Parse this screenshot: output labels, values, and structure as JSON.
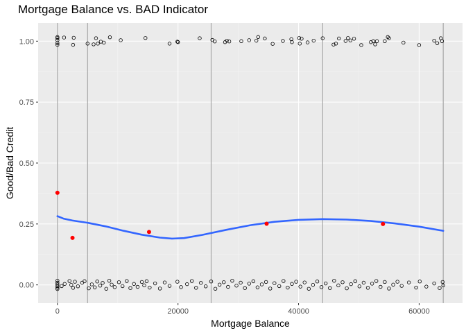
{
  "chart_data": {
    "type": "scatter",
    "title": "Mortgage Balance vs. BAD Indicator",
    "xlabel": "Mortgage Balance",
    "ylabel": "Good/Bad Credit",
    "xlim": [
      -3200,
      67200
    ],
    "ylim": [
      -0.075,
      1.075
    ],
    "x_ticks": [
      0,
      20000,
      40000,
      60000
    ],
    "x_tick_labels": [
      "0",
      "20000",
      "40000",
      "60000"
    ],
    "y_ticks": [
      0,
      0.25,
      0.5,
      0.75,
      1
    ],
    "y_tick_labels": [
      "0.00",
      "0.25",
      "0.50",
      "0.75",
      "1.00"
    ],
    "grid": true,
    "bin_breaks": [
      0,
      5000,
      25500,
      44000,
      64000
    ],
    "bin_means": [
      {
        "x": 0,
        "y": 0.378
      },
      {
        "x": 2500,
        "y": 0.193
      },
      {
        "x": 15200,
        "y": 0.217
      },
      {
        "x": 34700,
        "y": 0.251
      },
      {
        "x": 54000,
        "y": 0.25
      }
    ],
    "smooth_line": [
      {
        "x": 0,
        "y": 0.282
      },
      {
        "x": 1000,
        "y": 0.272
      },
      {
        "x": 2500,
        "y": 0.264
      },
      {
        "x": 5000,
        "y": 0.255
      },
      {
        "x": 8000,
        "y": 0.24
      },
      {
        "x": 11000,
        "y": 0.222
      },
      {
        "x": 14000,
        "y": 0.206
      },
      {
        "x": 17000,
        "y": 0.194
      },
      {
        "x": 19000,
        "y": 0.19
      },
      {
        "x": 21000,
        "y": 0.192
      },
      {
        "x": 24000,
        "y": 0.205
      },
      {
        "x": 28000,
        "y": 0.226
      },
      {
        "x": 32000,
        "y": 0.245
      },
      {
        "x": 36000,
        "y": 0.259
      },
      {
        "x": 40000,
        "y": 0.267
      },
      {
        "x": 44000,
        "y": 0.27
      },
      {
        "x": 48000,
        "y": 0.268
      },
      {
        "x": 52000,
        "y": 0.262
      },
      {
        "x": 56000,
        "y": 0.252
      },
      {
        "x": 60000,
        "y": 0.239
      },
      {
        "x": 64000,
        "y": 0.222
      }
    ],
    "points_bad": [
      {
        "x": 0,
        "y": 1.013
      },
      {
        "x": 0,
        "y": 0.992
      },
      {
        "x": 0,
        "y": 1.004
      },
      {
        "x": 0,
        "y": 1.017
      },
      {
        "x": 0,
        "y": 0.985
      },
      {
        "x": 1100,
        "y": 1.015
      },
      {
        "x": 2600,
        "y": 0.985
      },
      {
        "x": 2700,
        "y": 1.014
      },
      {
        "x": 5000,
        "y": 0.99
      },
      {
        "x": 6000,
        "y": 0.987
      },
      {
        "x": 6400,
        "y": 1.012
      },
      {
        "x": 6700,
        "y": 0.99
      },
      {
        "x": 7200,
        "y": 0.998
      },
      {
        "x": 7700,
        "y": 0.994
      },
      {
        "x": 8700,
        "y": 1.016
      },
      {
        "x": 10500,
        "y": 1.004
      },
      {
        "x": 14600,
        "y": 1.013
      },
      {
        "x": 18600,
        "y": 0.99
      },
      {
        "x": 19900,
        "y": 0.998
      },
      {
        "x": 20000,
        "y": 0.996
      },
      {
        "x": 23600,
        "y": 1.012
      },
      {
        "x": 25700,
        "y": 1.005
      },
      {
        "x": 26100,
        "y": 0.999
      },
      {
        "x": 27800,
        "y": 0.996
      },
      {
        "x": 28100,
        "y": 1.002
      },
      {
        "x": 28500,
        "y": 0.999
      },
      {
        "x": 30500,
        "y": 1.0
      },
      {
        "x": 31800,
        "y": 1.004
      },
      {
        "x": 33000,
        "y": 1.002
      },
      {
        "x": 33300,
        "y": 1.017
      },
      {
        "x": 34400,
        "y": 1.011
      },
      {
        "x": 35700,
        "y": 0.989
      },
      {
        "x": 37400,
        "y": 1.001
      },
      {
        "x": 38800,
        "y": 1.008
      },
      {
        "x": 38900,
        "y": 0.996
      },
      {
        "x": 40100,
        "y": 1.013
      },
      {
        "x": 40500,
        "y": 1.01
      },
      {
        "x": 40200,
        "y": 0.99
      },
      {
        "x": 41500,
        "y": 0.995
      },
      {
        "x": 42500,
        "y": 1.002
      },
      {
        "x": 44000,
        "y": 1.012
      },
      {
        "x": 45800,
        "y": 0.986
      },
      {
        "x": 46200,
        "y": 0.99
      },
      {
        "x": 46700,
        "y": 1.011
      },
      {
        "x": 47800,
        "y": 1.001
      },
      {
        "x": 48200,
        "y": 1.013
      },
      {
        "x": 48600,
        "y": 1.003
      },
      {
        "x": 49200,
        "y": 1.01
      },
      {
        "x": 50400,
        "y": 0.984
      },
      {
        "x": 52000,
        "y": 0.996
      },
      {
        "x": 52400,
        "y": 1.0
      },
      {
        "x": 52700,
        "y": 0.987
      },
      {
        "x": 53000,
        "y": 1.0
      },
      {
        "x": 54300,
        "y": 1.0
      },
      {
        "x": 54800,
        "y": 1.017
      },
      {
        "x": 55000,
        "y": 1.012
      },
      {
        "x": 57400,
        "y": 0.994
      },
      {
        "x": 60000,
        "y": 0.984
      },
      {
        "x": 62500,
        "y": 1.002
      },
      {
        "x": 63000,
        "y": 0.992
      },
      {
        "x": 63600,
        "y": 1.012
      },
      {
        "x": 63800,
        "y": 1.0
      }
    ],
    "points_good": [
      {
        "x": 0,
        "y": 0.017
      },
      {
        "x": 0,
        "y": 0.009
      },
      {
        "x": 0,
        "y": 0.002
      },
      {
        "x": 0,
        "y": -0.005
      },
      {
        "x": 0,
        "y": -0.012
      },
      {
        "x": 0,
        "y": -0.017
      },
      {
        "x": 700,
        "y": -0.005
      },
      {
        "x": 1200,
        "y": 0.004
      },
      {
        "x": 2000,
        "y": 0.016
      },
      {
        "x": 2300,
        "y": 0.0
      },
      {
        "x": 2600,
        "y": -0.012
      },
      {
        "x": 2900,
        "y": 0.013
      },
      {
        "x": 3400,
        "y": -0.006
      },
      {
        "x": 4100,
        "y": 0.009
      },
      {
        "x": 4500,
        "y": 0.015
      },
      {
        "x": 5200,
        "y": -0.014
      },
      {
        "x": 5700,
        "y": 0.002
      },
      {
        "x": 6200,
        "y": -0.01
      },
      {
        "x": 6600,
        "y": 0.014
      },
      {
        "x": 7100,
        "y": -0.003
      },
      {
        "x": 7500,
        "y": 0.008
      },
      {
        "x": 8100,
        "y": -0.016
      },
      {
        "x": 8600,
        "y": 0.017
      },
      {
        "x": 9000,
        "y": 0.001
      },
      {
        "x": 9500,
        "y": -0.009
      },
      {
        "x": 10200,
        "y": 0.011
      },
      {
        "x": 10800,
        "y": -0.005
      },
      {
        "x": 11500,
        "y": 0.016
      },
      {
        "x": 12100,
        "y": -0.013
      },
      {
        "x": 12700,
        "y": 0.004
      },
      {
        "x": 13300,
        "y": -0.008
      },
      {
        "x": 14000,
        "y": 0.012
      },
      {
        "x": 14400,
        "y": -0.002
      },
      {
        "x": 14800,
        "y": 0.015
      },
      {
        "x": 15300,
        "y": -0.011
      },
      {
        "x": 16200,
        "y": 0.006
      },
      {
        "x": 17000,
        "y": -0.015
      },
      {
        "x": 17800,
        "y": 0.01
      },
      {
        "x": 18600,
        "y": -0.004
      },
      {
        "x": 19900,
        "y": 0.013
      },
      {
        "x": 20500,
        "y": -0.009
      },
      {
        "x": 21500,
        "y": 0.003
      },
      {
        "x": 22300,
        "y": 0.016
      },
      {
        "x": 23000,
        "y": -0.012
      },
      {
        "x": 23800,
        "y": 0.008
      },
      {
        "x": 24600,
        "y": -0.006
      },
      {
        "x": 25500,
        "y": 0.014
      },
      {
        "x": 26200,
        "y": -0.016
      },
      {
        "x": 26900,
        "y": 0.001
      },
      {
        "x": 27600,
        "y": 0.011
      },
      {
        "x": 28300,
        "y": -0.008
      },
      {
        "x": 29000,
        "y": 0.017
      },
      {
        "x": 29700,
        "y": -0.003
      },
      {
        "x": 30400,
        "y": 0.009
      },
      {
        "x": 31100,
        "y": -0.013
      },
      {
        "x": 31800,
        "y": 0.005
      },
      {
        "x": 32500,
        "y": 0.015
      },
      {
        "x": 33200,
        "y": -0.01
      },
      {
        "x": 33900,
        "y": 0.002
      },
      {
        "x": 34600,
        "y": 0.012
      },
      {
        "x": 35300,
        "y": -0.015
      },
      {
        "x": 36000,
        "y": 0.007
      },
      {
        "x": 36800,
        "y": -0.005
      },
      {
        "x": 37500,
        "y": 0.016
      },
      {
        "x": 38200,
        "y": -0.011
      },
      {
        "x": 38900,
        "y": 0.004
      },
      {
        "x": 39600,
        "y": 0.013
      },
      {
        "x": 40300,
        "y": -0.007
      },
      {
        "x": 41000,
        "y": 0.01
      },
      {
        "x": 41700,
        "y": -0.016
      },
      {
        "x": 42400,
        "y": 0.0
      },
      {
        "x": 43100,
        "y": 0.014
      },
      {
        "x": 43800,
        "y": -0.009
      },
      {
        "x": 44500,
        "y": 0.006
      },
      {
        "x": 45200,
        "y": -0.013
      },
      {
        "x": 45900,
        "y": 0.017
      },
      {
        "x": 46600,
        "y": -0.002
      },
      {
        "x": 47300,
        "y": 0.011
      },
      {
        "x": 48000,
        "y": -0.014
      },
      {
        "x": 48700,
        "y": 0.003
      },
      {
        "x": 49400,
        "y": 0.015
      },
      {
        "x": 50100,
        "y": -0.006
      },
      {
        "x": 50800,
        "y": 0.009
      },
      {
        "x": 51500,
        "y": -0.012
      },
      {
        "x": 52200,
        "y": 0.005
      },
      {
        "x": 52900,
        "y": 0.016
      },
      {
        "x": 53600,
        "y": -0.008
      },
      {
        "x": 54300,
        "y": 0.012
      },
      {
        "x": 55000,
        "y": -0.015
      },
      {
        "x": 55700,
        "y": 0.001
      },
      {
        "x": 56400,
        "y": 0.013
      },
      {
        "x": 57100,
        "y": -0.004
      },
      {
        "x": 58300,
        "y": 0.01
      },
      {
        "x": 59500,
        "y": -0.011
      },
      {
        "x": 60100,
        "y": 0.014
      },
      {
        "x": 61200,
        "y": -0.007
      },
      {
        "x": 62500,
        "y": 0.006
      },
      {
        "x": 63400,
        "y": -0.013
      },
      {
        "x": 63900,
        "y": 0.012
      },
      {
        "x": 64000,
        "y": -0.002
      }
    ],
    "colors": {
      "panel": "#ebebeb",
      "grid_major": "#ffffff",
      "grid_minor": "#f4f4f4",
      "smooth": "#3366ff",
      "means": "#ff0000",
      "bin_lines": "#a6a6a6",
      "points": "#000000"
    }
  }
}
